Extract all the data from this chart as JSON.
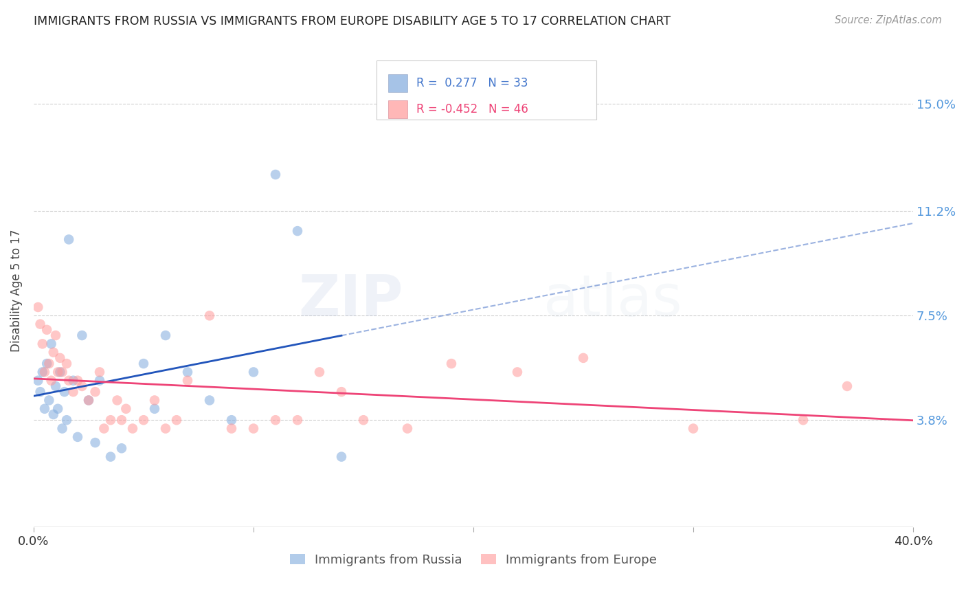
{
  "title": "IMMIGRANTS FROM RUSSIA VS IMMIGRANTS FROM EUROPE DISABILITY AGE 5 TO 17 CORRELATION CHART",
  "source": "Source: ZipAtlas.com",
  "ylabel": "Disability Age 5 to 17",
  "ytick_labels": [
    "3.8%",
    "7.5%",
    "11.2%",
    "15.0%"
  ],
  "ytick_values": [
    3.8,
    7.5,
    11.2,
    15.0
  ],
  "xlim": [
    0.0,
    40.0
  ],
  "ylim": [
    0.0,
    16.8
  ],
  "blue_color": "#80AADD",
  "pink_color": "#FF9999",
  "blue_line_color": "#2255BB",
  "pink_line_color": "#EE4477",
  "legend_label1": "Immigrants from Russia",
  "legend_label2": "Immigrants from Europe",
  "russia_x": [
    0.2,
    0.3,
    0.4,
    0.5,
    0.6,
    0.7,
    0.8,
    0.9,
    1.0,
    1.1,
    1.2,
    1.3,
    1.4,
    1.5,
    1.6,
    1.8,
    2.0,
    2.2,
    2.5,
    2.8,
    3.0,
    3.5,
    4.0,
    5.0,
    5.5,
    6.0,
    7.0,
    8.0,
    9.0,
    10.0,
    11.0,
    12.0,
    14.0
  ],
  "russia_y": [
    5.2,
    4.8,
    5.5,
    4.2,
    5.8,
    4.5,
    6.5,
    4.0,
    5.0,
    4.2,
    5.5,
    3.5,
    4.8,
    3.8,
    10.2,
    5.2,
    3.2,
    6.8,
    4.5,
    3.0,
    5.2,
    2.5,
    2.8,
    5.8,
    4.2,
    6.8,
    5.5,
    4.5,
    3.8,
    5.5,
    12.5,
    10.5,
    2.5
  ],
  "europe_x": [
    0.2,
    0.3,
    0.4,
    0.5,
    0.6,
    0.7,
    0.8,
    0.9,
    1.0,
    1.1,
    1.2,
    1.3,
    1.5,
    1.6,
    1.8,
    2.0,
    2.2,
    2.5,
    2.8,
    3.0,
    3.2,
    3.5,
    3.8,
    4.0,
    4.2,
    4.5,
    5.0,
    5.5,
    6.0,
    6.5,
    7.0,
    8.0,
    9.0,
    10.0,
    11.0,
    12.0,
    13.0,
    14.0,
    15.0,
    17.0,
    19.0,
    22.0,
    25.0,
    30.0,
    35.0,
    37.0
  ],
  "europe_y": [
    7.8,
    7.2,
    6.5,
    5.5,
    7.0,
    5.8,
    5.2,
    6.2,
    6.8,
    5.5,
    6.0,
    5.5,
    5.8,
    5.2,
    4.8,
    5.2,
    5.0,
    4.5,
    4.8,
    5.5,
    3.5,
    3.8,
    4.5,
    3.8,
    4.2,
    3.5,
    3.8,
    4.5,
    3.5,
    3.8,
    5.2,
    7.5,
    3.5,
    3.5,
    3.8,
    3.8,
    5.5,
    4.8,
    3.8,
    3.5,
    5.8,
    5.5,
    6.0,
    3.5,
    3.8,
    5.0
  ],
  "watermark_zip": "ZIP",
  "watermark_atlas": "atlas",
  "background_color": "#FFFFFF",
  "grid_color": "#CCCCCC"
}
